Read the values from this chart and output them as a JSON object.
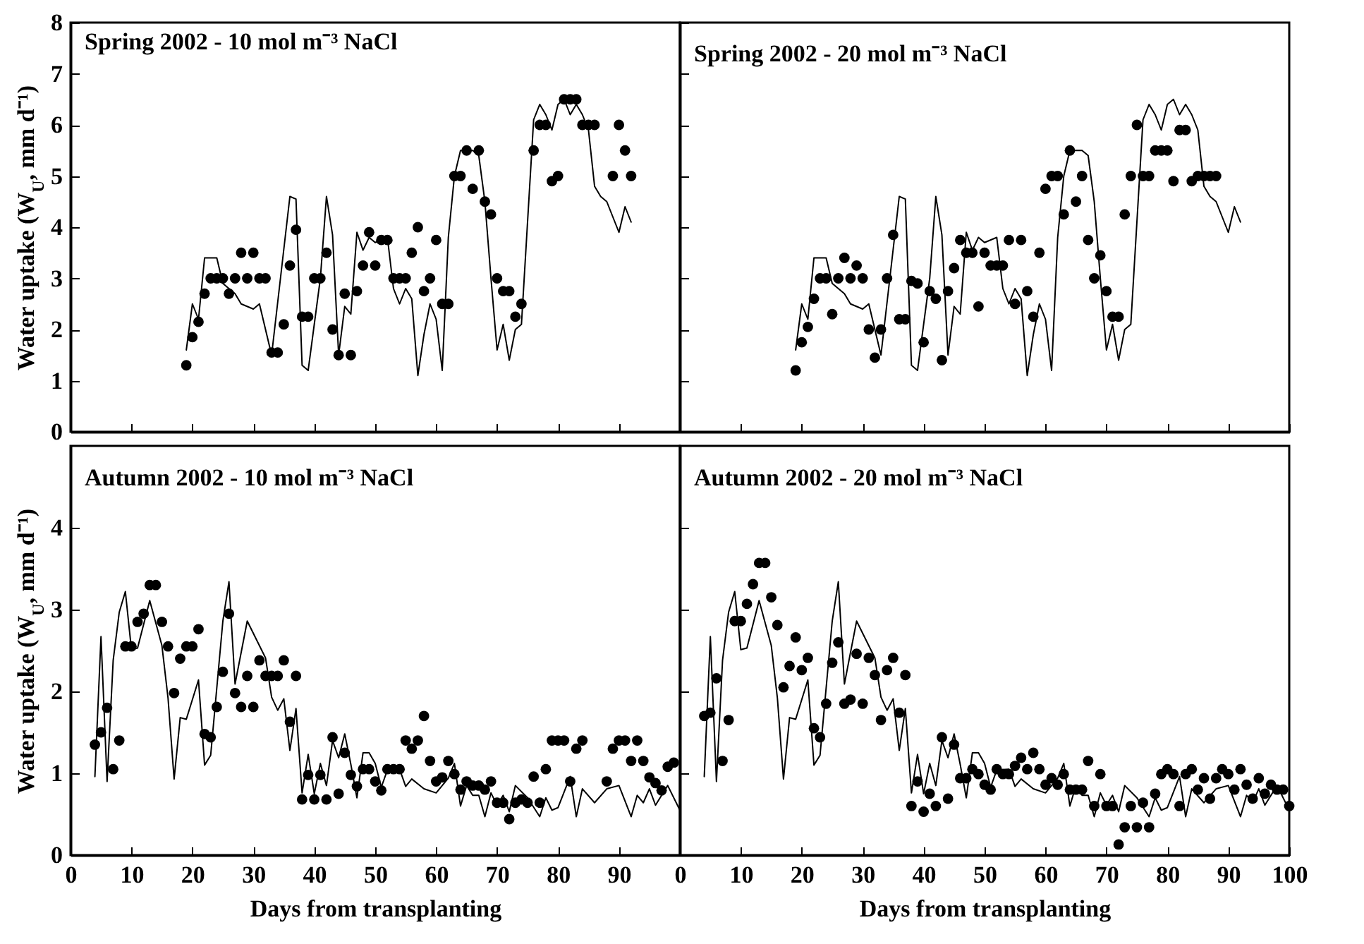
{
  "chart_data": [
    {
      "type": "scatter",
      "title": "Spring 2002 - 10 mol m⁻³ NaCl",
      "ylabel": "Water uptake (W$_{U}$, mm d⁻¹)",
      "xlim": [
        0,
        100
      ],
      "xticks": [
        0,
        10,
        20,
        30,
        40,
        50,
        60,
        70,
        80,
        90
      ],
      "ylim": [
        0,
        8
      ],
      "yticks": [
        0,
        1,
        2,
        3,
        4,
        5,
        6,
        7,
        8
      ],
      "tick_labels": "y",
      "series": [
        {
          "type": "scatter",
          "marker": "circle",
          "color": "#000000",
          "x": [
            19,
            20,
            21,
            22,
            23,
            24,
            25,
            26,
            27,
            28,
            29,
            30,
            31,
            32,
            33,
            34,
            35,
            36,
            37,
            38,
            39,
            40,
            41,
            42,
            43,
            44,
            45,
            46,
            47,
            48,
            49,
            50,
            51,
            52,
            53,
            54,
            55,
            56,
            57,
            58,
            59,
            60,
            61,
            62,
            63,
            64,
            65,
            66,
            67,
            68,
            69,
            70,
            71,
            72,
            73,
            74,
            76,
            77,
            78,
            79,
            80,
            81,
            82,
            83,
            84,
            85,
            86,
            89,
            90,
            91,
            92
          ],
          "values": [
            1.3,
            1.85,
            2.15,
            2.7,
            3.0,
            3.0,
            3.0,
            2.7,
            3.0,
            3.5,
            3.0,
            3.5,
            3.0,
            3.0,
            1.55,
            1.55,
            2.1,
            3.25,
            3.95,
            2.25,
            2.25,
            3.0,
            3.0,
            3.5,
            2.0,
            1.5,
            2.7,
            1.5,
            2.75,
            3.25,
            3.9,
            3.25,
            3.75,
            3.75,
            3.0,
            3.0,
            3.0,
            3.5,
            4.0,
            2.75,
            3.0,
            3.75,
            2.5,
            2.5,
            5.0,
            5.0,
            5.5,
            4.75,
            5.5,
            4.5,
            4.25,
            3.0,
            2.75,
            2.75,
            2.25,
            2.5,
            5.5,
            6.0,
            6.0,
            4.9,
            5.0,
            6.5,
            6.5,
            6.5,
            6.0,
            6.0,
            6.0,
            5.0,
            6.0,
            5.5,
            5.0
          ]
        },
        {
          "type": "line",
          "color": "#000000",
          "x": [
            19,
            20,
            21,
            22,
            24,
            25,
            27,
            28,
            30,
            31,
            33,
            36,
            37,
            38,
            39,
            41,
            42,
            43,
            44,
            45,
            46,
            47,
            48,
            49,
            50,
            52,
            53,
            54,
            55,
            56,
            57,
            58,
            59,
            60,
            61,
            62,
            63,
            64,
            66,
            67,
            68,
            69,
            70,
            71,
            72,
            73,
            74,
            76,
            77,
            78,
            79,
            80,
            81,
            82,
            83,
            84,
            85,
            86,
            87,
            88,
            89,
            90,
            91,
            92
          ],
          "values": [
            1.6,
            2.5,
            2.2,
            3.4,
            3.4,
            2.9,
            2.7,
            2.5,
            2.4,
            2.5,
            1.5,
            4.6,
            4.55,
            1.3,
            1.2,
            3.0,
            4.6,
            3.85,
            1.5,
            2.45,
            2.3,
            3.9,
            3.55,
            3.8,
            3.7,
            3.8,
            2.8,
            2.5,
            2.8,
            2.6,
            1.1,
            1.9,
            2.5,
            2.2,
            1.2,
            3.8,
            5.0,
            5.5,
            5.5,
            5.4,
            4.5,
            3.0,
            1.6,
            2.1,
            1.4,
            2.0,
            2.1,
            6.1,
            6.4,
            6.2,
            5.9,
            6.4,
            6.5,
            6.2,
            6.4,
            6.2,
            5.9,
            4.8,
            4.6,
            4.5,
            4.2,
            3.9,
            4.4,
            4.1
          ]
        }
      ]
    },
    {
      "type": "scatter",
      "title": "Spring 2002 - 20 mol m⁻³ NaCl",
      "xlim": [
        0,
        100
      ],
      "xticks": [
        0,
        10,
        20,
        30,
        40,
        50,
        60,
        70,
        80,
        90,
        100
      ],
      "ylim": [
        0,
        8
      ],
      "yticks": [
        0,
        1,
        2,
        3,
        4,
        5,
        6,
        7,
        8
      ],
      "tick_labels": false,
      "series": [
        {
          "type": "scatter",
          "marker": "circle",
          "color": "#000000",
          "x": [
            19,
            20,
            21,
            22,
            23,
            24,
            25,
            26,
            27,
            28,
            29,
            30,
            31,
            32,
            33,
            34,
            35,
            36,
            37,
            38,
            39,
            40,
            41,
            42,
            43,
            44,
            45,
            46,
            47,
            48,
            49,
            50,
            51,
            52,
            53,
            54,
            55,
            56,
            57,
            58,
            59,
            60,
            61,
            62,
            63,
            64,
            65,
            66,
            67,
            68,
            69,
            70,
            71,
            72,
            73,
            74,
            75,
            76,
            77,
            78,
            79,
            80,
            81,
            82,
            83,
            84,
            85,
            86,
            87,
            88
          ],
          "values": [
            1.2,
            1.75,
            2.05,
            2.6,
            3.0,
            3.0,
            2.3,
            3.0,
            3.4,
            3.0,
            3.25,
            3.0,
            2.0,
            1.45,
            2.0,
            3.0,
            3.85,
            2.2,
            2.2,
            2.95,
            2.9,
            1.75,
            2.75,
            2.6,
            1.4,
            2.75,
            3.2,
            3.75,
            3.5,
            3.5,
            2.45,
            3.5,
            3.25,
            3.25,
            3.25,
            3.75,
            2.5,
            3.75,
            2.75,
            2.25,
            3.5,
            4.75,
            5.0,
            5.0,
            4.25,
            5.5,
            4.5,
            5.0,
            3.75,
            3.0,
            3.45,
            2.75,
            2.25,
            2.25,
            4.25,
            5.0,
            6.0,
            5.0,
            5.0,
            5.5,
            5.5,
            5.5,
            4.9,
            5.9,
            5.9,
            4.9,
            5.0,
            5.0,
            5.0,
            5.0
          ]
        },
        {
          "type": "line",
          "color": "#000000",
          "x": [
            19,
            20,
            21,
            22,
            24,
            25,
            27,
            28,
            30,
            31,
            33,
            36,
            37,
            38,
            39,
            41,
            42,
            43,
            44,
            45,
            46,
            47,
            48,
            49,
            50,
            52,
            53,
            54,
            55,
            56,
            57,
            58,
            59,
            60,
            61,
            62,
            63,
            64,
            66,
            67,
            68,
            69,
            70,
            71,
            72,
            73,
            74,
            76,
            77,
            78,
            79,
            80,
            81,
            82,
            83,
            84,
            85,
            86,
            87,
            88,
            89,
            90,
            91,
            92
          ],
          "values": [
            1.6,
            2.5,
            2.2,
            3.4,
            3.4,
            2.9,
            2.7,
            2.5,
            2.4,
            2.5,
            1.5,
            4.6,
            4.55,
            1.3,
            1.2,
            3.0,
            4.6,
            3.85,
            1.5,
            2.45,
            2.3,
            3.9,
            3.55,
            3.8,
            3.7,
            3.8,
            2.8,
            2.5,
            2.8,
            2.6,
            1.1,
            1.9,
            2.5,
            2.2,
            1.2,
            3.8,
            5.0,
            5.5,
            5.5,
            5.4,
            4.5,
            3.0,
            1.6,
            2.1,
            1.4,
            2.0,
            2.1,
            6.1,
            6.4,
            6.2,
            5.9,
            6.4,
            6.5,
            6.2,
            6.4,
            6.2,
            5.9,
            4.8,
            4.6,
            4.5,
            4.2,
            3.9,
            4.4,
            4.1
          ]
        }
      ]
    },
    {
      "type": "scatter",
      "title": "Autumn 2002 - 10 mol m⁻³ NaCl",
      "xlabel": "Days from transplanting",
      "ylabel": "Water uptake (W$_{U}$, mm d⁻¹)",
      "xlim": [
        0,
        100
      ],
      "xticks": [
        0,
        10,
        20,
        30,
        40,
        50,
        60,
        70,
        80,
        90
      ],
      "ylim": [
        0,
        5
      ],
      "yticks": [
        0,
        1,
        2,
        3,
        4
      ],
      "series": [
        {
          "type": "scatter",
          "marker": "circle",
          "color": "#000000",
          "x": [
            4,
            5,
            6,
            7,
            8,
            9,
            10,
            11,
            12,
            13,
            14,
            15,
            16,
            17,
            18,
            19,
            20,
            21,
            22,
            23,
            24,
            25,
            26,
            27,
            28,
            29,
            30,
            31,
            32,
            33,
            34,
            35,
            36,
            37,
            38,
            39,
            40,
            41,
            42,
            43,
            44,
            45,
            46,
            47,
            48,
            49,
            50,
            51,
            52,
            53,
            54,
            55,
            56,
            57,
            58,
            59,
            60,
            61,
            62,
            63,
            64,
            65,
            66,
            67,
            68,
            69,
            70,
            71,
            72,
            73,
            74,
            75,
            76,
            77,
            78,
            79,
            80,
            81,
            82,
            83,
            84,
            88,
            89,
            90,
            91,
            92,
            93,
            94,
            95,
            96,
            97,
            98,
            99
          ],
          "values": [
            1.35,
            1.5,
            1.8,
            1.05,
            1.4,
            2.55,
            2.55,
            2.85,
            2.95,
            3.3,
            3.3,
            2.85,
            2.55,
            1.98,
            2.4,
            2.55,
            2.55,
            2.76,
            1.48,
            1.44,
            1.81,
            2.24,
            2.95,
            1.98,
            1.81,
            2.19,
            1.81,
            2.38,
            2.19,
            2.19,
            2.19,
            2.38,
            1.63,
            2.19,
            0.68,
            0.98,
            0.68,
            0.98,
            0.68,
            1.44,
            0.75,
            1.25,
            0.98,
            0.84,
            1.05,
            1.05,
            0.9,
            0.79,
            1.05,
            1.05,
            1.05,
            1.4,
            1.3,
            1.4,
            1.7,
            1.15,
            0.9,
            0.95,
            1.15,
            0.99,
            0.8,
            0.9,
            0.85,
            0.85,
            0.8,
            0.9,
            0.64,
            0.64,
            0.44,
            0.64,
            0.68,
            0.64,
            0.96,
            0.64,
            1.05,
            1.4,
            1.4,
            1.4,
            0.9,
            1.3,
            1.4,
            0.9,
            1.3,
            1.4,
            1.4,
            1.15,
            1.4,
            1.15,
            0.95,
            0.88,
            0.79,
            1.08,
            1.13
          ]
        },
        {
          "type": "line",
          "color": "#000000",
          "x": [
            4,
            5,
            6,
            7,
            8,
            9,
            10,
            11,
            13,
            15,
            16,
            17,
            18,
            19,
            21,
            22,
            23,
            25,
            26,
            27,
            29,
            32,
            33,
            34,
            35,
            36,
            37,
            38,
            39,
            40,
            41,
            42,
            43,
            44,
            45,
            46,
            47,
            48,
            49,
            50,
            51,
            52,
            54,
            55,
            56,
            58,
            60,
            62,
            63,
            64,
            65,
            66,
            67,
            68,
            69,
            70,
            71,
            72,
            73,
            75,
            77,
            78,
            79,
            80,
            82,
            83,
            84,
            86,
            88,
            90,
            92,
            93,
            94,
            95,
            96,
            98,
            100
          ],
          "values": [
            0.96,
            2.67,
            0.9,
            2.38,
            2.97,
            3.22,
            2.51,
            2.53,
            3.11,
            2.56,
            1.92,
            0.93,
            1.68,
            1.66,
            2.14,
            1.1,
            1.22,
            2.86,
            3.34,
            2.09,
            2.86,
            2.41,
            1.93,
            1.77,
            1.91,
            1.28,
            1.79,
            0.76,
            1.23,
            0.75,
            1.12,
            0.85,
            1.4,
            1.19,
            1.48,
            1.11,
            0.7,
            1.25,
            1.25,
            1.12,
            0.83,
            1.04,
            1.05,
            0.84,
            0.93,
            0.81,
            0.76,
            0.94,
            1.12,
            0.6,
            0.85,
            0.73,
            0.73,
            0.47,
            0.76,
            0.61,
            0.73,
            0.53,
            0.85,
            0.7,
            0.47,
            0.7,
            0.55,
            0.58,
            0.96,
            0.47,
            0.81,
            0.64,
            0.81,
            0.85,
            0.47,
            0.73,
            0.64,
            0.81,
            0.61,
            0.85,
            0.55
          ]
        }
      ]
    },
    {
      "type": "scatter",
      "title": "Autumn 2002 - 20 mol m⁻³ NaCl",
      "xlabel": "Days from transplanting",
      "xlim": [
        0,
        100
      ],
      "xticks": [
        0,
        10,
        20,
        30,
        40,
        50,
        60,
        70,
        80,
        90,
        100
      ],
      "ylim": [
        0,
        5
      ],
      "yticks": [
        0,
        1,
        2,
        3,
        4
      ],
      "tick_labels": "x",
      "series": [
        {
          "type": "scatter",
          "marker": "circle",
          "color": "#000000",
          "x": [
            4,
            5,
            6,
            7,
            8,
            9,
            10,
            11,
            12,
            13,
            14,
            15,
            16,
            17,
            18,
            19,
            20,
            21,
            22,
            23,
            24,
            25,
            26,
            27,
            28,
            29,
            30,
            31,
            32,
            33,
            34,
            35,
            36,
            37,
            38,
            39,
            40,
            41,
            42,
            43,
            44,
            45,
            46,
            47,
            48,
            49,
            50,
            51,
            52,
            53,
            54,
            55,
            56,
            57,
            58,
            59,
            60,
            61,
            62,
            63,
            64,
            65,
            66,
            67,
            68,
            69,
            70,
            71,
            72,
            73,
            74,
            75,
            76,
            77,
            78,
            79,
            80,
            81,
            82,
            83,
            84,
            85,
            86,
            87,
            88,
            89,
            90,
            91,
            92,
            93,
            94,
            95,
            96,
            97,
            98,
            99,
            100
          ],
          "values": [
            1.7,
            1.74,
            2.16,
            1.15,
            1.65,
            2.86,
            2.86,
            3.07,
            3.31,
            3.57,
            3.57,
            3.15,
            2.81,
            2.05,
            2.31,
            2.66,
            2.26,
            2.41,
            1.55,
            1.44,
            1.85,
            2.35,
            2.6,
            1.85,
            1.9,
            2.46,
            1.85,
            2.41,
            2.2,
            1.65,
            2.26,
            2.41,
            1.74,
            2.2,
            0.6,
            0.9,
            0.53,
            0.75,
            0.6,
            1.44,
            0.69,
            1.35,
            0.94,
            0.94,
            1.05,
            0.99,
            0.86,
            0.8,
            1.05,
            0.99,
            0.99,
            1.09,
            1.19,
            1.05,
            1.25,
            1.05,
            0.86,
            0.94,
            0.86,
            0.99,
            0.8,
            0.8,
            0.8,
            1.15,
            0.6,
            0.99,
            0.6,
            0.6,
            0.13,
            0.34,
            0.6,
            0.34,
            0.64,
            0.34,
            0.75,
            0.99,
            1.05,
            0.99,
            0.6,
            0.99,
            1.05,
            0.8,
            0.94,
            0.69,
            0.94,
            1.05,
            0.99,
            0.8,
            1.05,
            0.86,
            0.69,
            0.94,
            0.75,
            0.86,
            0.8,
            0.8,
            0.6
          ]
        },
        {
          "type": "line",
          "color": "#000000",
          "x": [
            4,
            5,
            6,
            7,
            8,
            9,
            10,
            11,
            13,
            15,
            16,
            17,
            18,
            19,
            21,
            22,
            23,
            25,
            26,
            27,
            29,
            32,
            33,
            34,
            35,
            36,
            37,
            38,
            39,
            40,
            41,
            42,
            43,
            44,
            45,
            46,
            47,
            48,
            49,
            50,
            51,
            52,
            54,
            55,
            56,
            58,
            60,
            62,
            63,
            64,
            65,
            66,
            67,
            68,
            69,
            70,
            71,
            72,
            73,
            75,
            77,
            78,
            79,
            80,
            82,
            83,
            84,
            86,
            88,
            90,
            92,
            93,
            94,
            95,
            96,
            98,
            100
          ],
          "values": [
            0.96,
            2.67,
            0.9,
            2.38,
            2.97,
            3.22,
            2.51,
            2.53,
            3.11,
            2.56,
            1.92,
            0.93,
            1.68,
            1.66,
            2.14,
            1.1,
            1.22,
            2.86,
            3.34,
            2.09,
            2.86,
            2.41,
            1.93,
            1.77,
            1.91,
            1.28,
            1.79,
            0.76,
            1.23,
            0.75,
            1.12,
            0.85,
            1.4,
            1.19,
            1.48,
            1.11,
            0.7,
            1.25,
            1.25,
            1.12,
            0.83,
            1.04,
            1.05,
            0.84,
            0.93,
            0.81,
            0.76,
            0.94,
            1.12,
            0.6,
            0.85,
            0.73,
            0.73,
            0.47,
            0.76,
            0.61,
            0.73,
            0.53,
            0.85,
            0.7,
            0.47,
            0.7,
            0.55,
            0.58,
            0.96,
            0.47,
            0.81,
            0.64,
            0.81,
            0.85,
            0.47,
            0.73,
            0.64,
            0.81,
            0.61,
            0.85,
            0.55
          ]
        }
      ]
    }
  ]
}
